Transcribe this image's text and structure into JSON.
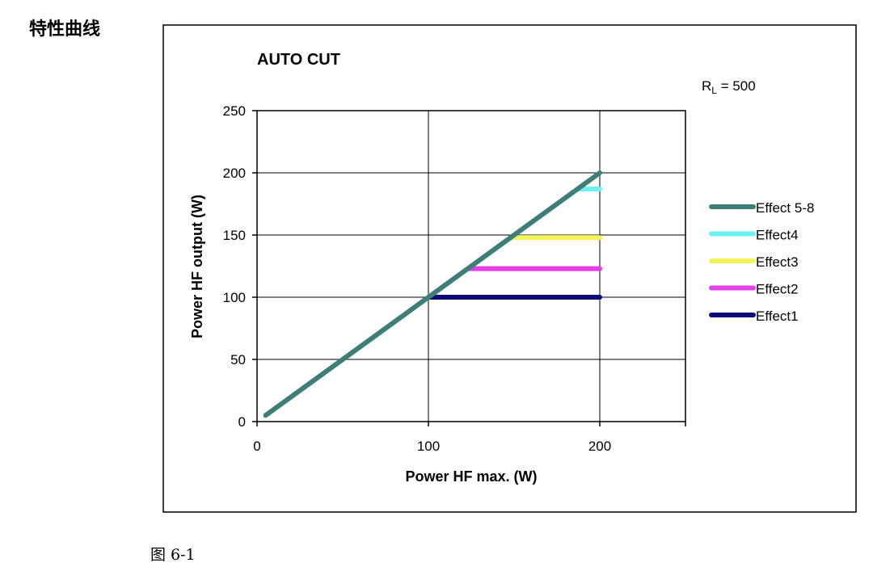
{
  "heading": "特性曲线",
  "caption": "图 6-1",
  "chart_data": {
    "type": "line",
    "title": "AUTO CUT",
    "annotation": {
      "main": "R",
      "sub": "L",
      "rest": " = 500"
    },
    "xlabel": "Power HF max. (W)",
    "ylabel": "Power HF output  (W)",
    "xlim": [
      0,
      250
    ],
    "ylim": [
      0,
      250
    ],
    "xticks": [
      0,
      100,
      200
    ],
    "yticks": [
      0,
      50,
      100,
      150,
      200,
      250
    ],
    "grid": true,
    "legend_position": "right",
    "series": [
      {
        "name": "Effect 5-8",
        "color": "#3d7f78",
        "x": [
          5,
          200
        ],
        "y": [
          5,
          200
        ]
      },
      {
        "name": "Effect4",
        "color": "#6ff0f5",
        "x": [
          187,
          200
        ],
        "y": [
          187,
          187
        ]
      },
      {
        "name": "Effect3",
        "color": "#f3f35a",
        "x": [
          148,
          200
        ],
        "y": [
          148,
          148
        ]
      },
      {
        "name": "Effect2",
        "color": "#e83fe8",
        "x": [
          123,
          200
        ],
        "y": [
          123,
          123
        ]
      },
      {
        "name": "Effect1",
        "color": "#0a0a7a",
        "x": [
          100,
          200
        ],
        "y": [
          100,
          100
        ]
      }
    ]
  }
}
